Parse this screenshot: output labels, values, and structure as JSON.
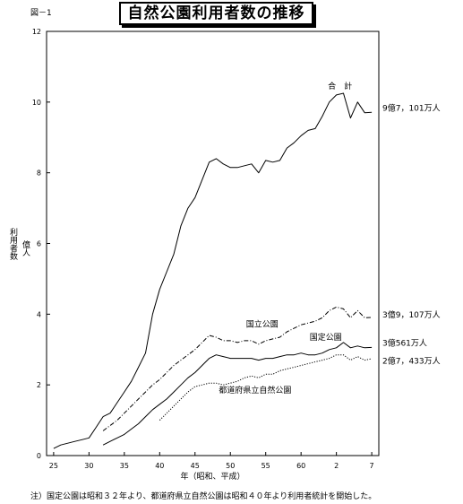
{
  "figure_label": "図－1",
  "chart_data": {
    "type": "line",
    "title": "自然公園利用者数の推移",
    "xlabel": "年（昭和、平成）",
    "ylabel": "利用者数",
    "yunit": "億人",
    "ylim": [
      0,
      12
    ],
    "yticks": [
      0,
      2,
      4,
      6,
      8,
      10,
      12
    ],
    "xlim": [
      1949,
      1996
    ],
    "xticks": [
      {
        "label": "25",
        "year": 1950
      },
      {
        "label": "30",
        "year": 1955
      },
      {
        "label": "35",
        "year": 1960
      },
      {
        "label": "40",
        "year": 1965
      },
      {
        "label": "45",
        "year": 1970
      },
      {
        "label": "50",
        "year": 1975
      },
      {
        "label": "55",
        "year": 1980
      },
      {
        "label": "60",
        "year": 1985
      },
      {
        "label": "2",
        "year": 1990
      },
      {
        "label": "7",
        "year": 1995
      }
    ],
    "grid": false,
    "series": [
      {
        "name": "合　計",
        "label_year": 1990.5,
        "label_value": 10.45,
        "end_label": "9億7，101万人",
        "end_label_value": 9.83,
        "style": "solid",
        "x": [
          1950,
          1951,
          1952,
          1953,
          1954,
          1955,
          1956,
          1957,
          1958,
          1959,
          1960,
          1961,
          1962,
          1963,
          1964,
          1965,
          1966,
          1967,
          1968,
          1969,
          1970,
          1971,
          1972,
          1973,
          1974,
          1975,
          1976,
          1977,
          1978,
          1979,
          1980,
          1981,
          1982,
          1983,
          1984,
          1985,
          1986,
          1987,
          1988,
          1989,
          1990,
          1991,
          1992,
          1993,
          1994,
          1995
        ],
        "values": [
          0.2,
          0.3,
          0.35,
          0.4,
          0.45,
          0.5,
          0.8,
          1.1,
          1.2,
          1.5,
          1.8,
          2.1,
          2.5,
          2.9,
          4.0,
          4.7,
          5.2,
          5.7,
          6.5,
          7.0,
          7.3,
          7.8,
          8.3,
          8.4,
          8.25,
          8.15,
          8.15,
          8.2,
          8.25,
          8.0,
          8.35,
          8.3,
          8.35,
          8.7,
          8.85,
          9.05,
          9.2,
          9.25,
          9.6,
          10.0,
          10.2,
          10.25,
          9.55,
          10.0,
          9.7,
          9.71
        ]
      },
      {
        "name": "国立公園",
        "label_year": 1979.5,
        "label_value": 3.72,
        "end_label": "3億9，107万人",
        "end_label_value": 3.98,
        "style": "dashdot",
        "x": [
          1957,
          1958,
          1959,
          1960,
          1961,
          1962,
          1963,
          1964,
          1965,
          1966,
          1967,
          1968,
          1969,
          1970,
          1971,
          1972,
          1973,
          1974,
          1975,
          1976,
          1977,
          1978,
          1979,
          1980,
          1981,
          1982,
          1983,
          1984,
          1985,
          1986,
          1987,
          1988,
          1989,
          1990,
          1991,
          1992,
          1993,
          1994,
          1995
        ],
        "values": [
          0.7,
          0.85,
          1.0,
          1.2,
          1.4,
          1.6,
          1.8,
          2.0,
          2.15,
          2.35,
          2.55,
          2.7,
          2.85,
          3.0,
          3.2,
          3.4,
          3.35,
          3.25,
          3.25,
          3.2,
          3.25,
          3.25,
          3.15,
          3.25,
          3.3,
          3.35,
          3.5,
          3.6,
          3.7,
          3.75,
          3.8,
          3.9,
          4.1,
          4.2,
          4.15,
          3.9,
          4.1,
          3.9,
          3.91
        ]
      },
      {
        "name": "国定公園",
        "label_year": 1988.5,
        "label_value": 3.35,
        "end_label": "3億561万人",
        "end_label_value": 3.18,
        "style": "solid",
        "x": [
          1957,
          1958,
          1959,
          1960,
          1961,
          1962,
          1963,
          1964,
          1965,
          1966,
          1967,
          1968,
          1969,
          1970,
          1971,
          1972,
          1973,
          1974,
          1975,
          1976,
          1977,
          1978,
          1979,
          1980,
          1981,
          1982,
          1983,
          1984,
          1985,
          1986,
          1987,
          1988,
          1989,
          1990,
          1991,
          1992,
          1993,
          1994,
          1995
        ],
        "values": [
          0.3,
          0.4,
          0.5,
          0.6,
          0.75,
          0.9,
          1.1,
          1.3,
          1.45,
          1.6,
          1.8,
          2.0,
          2.2,
          2.35,
          2.55,
          2.75,
          2.85,
          2.8,
          2.75,
          2.75,
          2.75,
          2.75,
          2.7,
          2.75,
          2.75,
          2.8,
          2.85,
          2.85,
          2.9,
          2.85,
          2.85,
          2.9,
          3.0,
          3.05,
          3.2,
          3.05,
          3.1,
          3.05,
          3.06
        ]
      },
      {
        "name": "都道府県立自然公園",
        "label_year": 1978.5,
        "label_value": 1.85,
        "end_label": "2億7，433万人",
        "end_label_value": 2.68,
        "style": "dotted",
        "x": [
          1965,
          1966,
          1967,
          1968,
          1969,
          1970,
          1971,
          1972,
          1973,
          1974,
          1975,
          1976,
          1977,
          1978,
          1979,
          1980,
          1981,
          1982,
          1983,
          1984,
          1985,
          1986,
          1987,
          1988,
          1989,
          1990,
          1991,
          1992,
          1993,
          1994,
          1995
        ],
        "values": [
          1.0,
          1.2,
          1.4,
          1.6,
          1.8,
          1.95,
          2.0,
          2.05,
          2.05,
          2.0,
          2.05,
          2.1,
          2.2,
          2.25,
          2.2,
          2.3,
          2.3,
          2.4,
          2.45,
          2.5,
          2.55,
          2.6,
          2.65,
          2.7,
          2.75,
          2.85,
          2.85,
          2.7,
          2.8,
          2.7,
          2.74
        ]
      }
    ]
  },
  "footnote": "注）国定公園は昭和３２年より、都道府県立自然公園は昭和４０年より利用者統計を開始した。"
}
